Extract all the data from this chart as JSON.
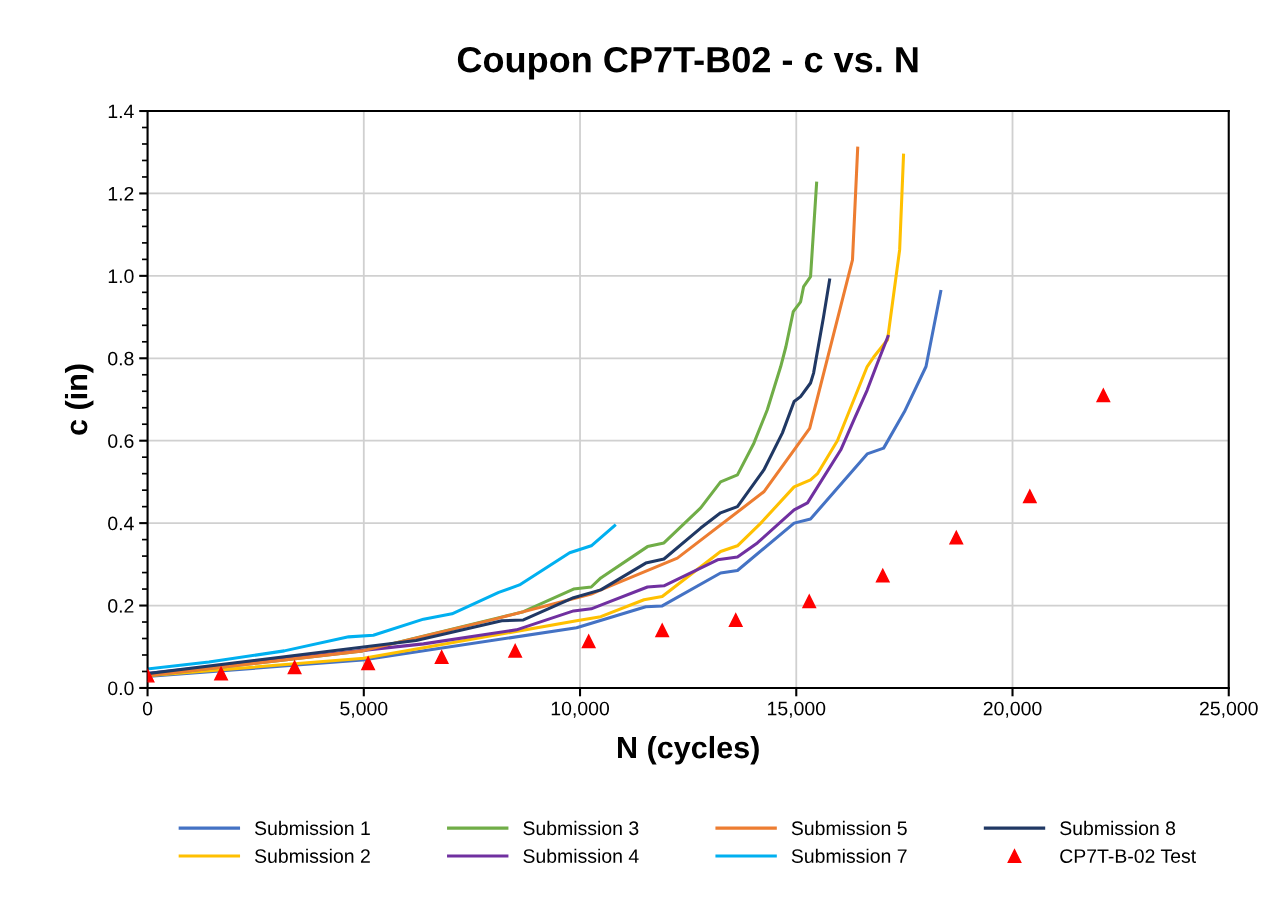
{
  "chart_data": {
    "type": "line",
    "title": "Coupon CP7T-B02 - c vs. N",
    "xlabel": "N (cycles)",
    "ylabel": "c (in)",
    "xlim": [
      0,
      25000
    ],
    "xticks": [
      {
        "value": 0,
        "label": "0"
      },
      {
        "value": 5000,
        "label": "5,000"
      },
      {
        "value": 10000,
        "label": "10,000"
      },
      {
        "value": 15000,
        "label": "15,000"
      },
      {
        "value": 20000,
        "label": "20,000"
      },
      {
        "value": 25000,
        "label": "25,000"
      }
    ],
    "ylim": [
      0,
      1.4
    ],
    "yticks": [
      {
        "value": 0,
        "label": "0.0"
      },
      {
        "value": 0.2,
        "label": "0.2"
      },
      {
        "value": 0.4,
        "label": "0.4"
      },
      {
        "value": 0.6,
        "label": "0.6"
      },
      {
        "value": 0.8,
        "label": "0.8"
      },
      {
        "value": 1.0,
        "label": "1.0"
      },
      {
        "value": 1.2,
        "label": "1.2"
      },
      {
        "value": 1.4,
        "label": "1.4"
      }
    ],
    "grid": true,
    "legend": "bottom",
    "marker": "none",
    "line_style": "solid",
    "series": [
      {
        "name": "Submission 1",
        "color": "#4472c4",
        "x": [
          0,
          4970,
          9920,
          11520,
          11900,
          13250,
          13640,
          14950,
          15330,
          16640,
          17020,
          17500,
          18000,
          18340
        ],
        "values": [
          0.028,
          0.068,
          0.146,
          0.197,
          0.199,
          0.279,
          0.285,
          0.4,
          0.41,
          0.568,
          0.582,
          0.67,
          0.78,
          0.962
        ]
      },
      {
        "name": "Submission 2",
        "color": "#ffc000",
        "x": [
          0,
          5000,
          9920,
          10480,
          11480,
          11900,
          13250,
          13640,
          14180,
          14950,
          15330,
          15490,
          15950,
          16640,
          16790,
          17110,
          17390,
          17480
        ],
        "values": [
          0.03,
          0.072,
          0.163,
          0.173,
          0.214,
          0.222,
          0.331,
          0.345,
          0.4,
          0.488,
          0.505,
          0.52,
          0.6,
          0.78,
          0.803,
          0.845,
          1.063,
          1.293
        ]
      },
      {
        "name": "Submission 3",
        "color": "#70ad47",
        "x": [
          0,
          4970,
          8690,
          9850,
          10260,
          10480,
          11560,
          11940,
          12790,
          13250,
          13640,
          14020,
          14330,
          14640,
          14760,
          14930,
          15100,
          15170,
          15330,
          15470
        ],
        "values": [
          0.03,
          0.09,
          0.185,
          0.24,
          0.245,
          0.267,
          0.343,
          0.352,
          0.437,
          0.5,
          0.517,
          0.594,
          0.675,
          0.78,
          0.828,
          0.913,
          0.937,
          0.974,
          0.998,
          1.225
        ]
      },
      {
        "name": "Submission 4",
        "color": "#7030a0",
        "x": [
          0,
          6380,
          8530,
          9850,
          10260,
          10480,
          11560,
          11940,
          13180,
          13640,
          14100,
          14950,
          15260,
          16030,
          16330,
          16640,
          16880,
          17120
        ],
        "values": [
          0.035,
          0.107,
          0.141,
          0.187,
          0.192,
          0.201,
          0.245,
          0.248,
          0.311,
          0.318,
          0.352,
          0.432,
          0.449,
          0.578,
          0.65,
          0.723,
          0.789,
          0.853
        ]
      },
      {
        "name": "Submission 5",
        "color": "#ed7d31",
        "x": [
          0,
          4970,
          8030,
          10260,
          10480,
          12250,
          14250,
          15310,
          16300,
          16420
        ],
        "values": [
          0.03,
          0.09,
          0.167,
          0.228,
          0.238,
          0.315,
          0.476,
          0.63,
          1.039,
          1.31
        ]
      },
      {
        "name": "Submission 7",
        "color": "#00b0f0",
        "x": [
          0,
          1420,
          3160,
          4650,
          5220,
          6380,
          7040,
          8120,
          8600,
          9760,
          10260,
          10800
        ],
        "values": [
          0.046,
          0.063,
          0.09,
          0.124,
          0.128,
          0.167,
          0.18,
          0.232,
          0.25,
          0.328,
          0.345,
          0.394
        ]
      },
      {
        "name": "Submission 8",
        "color": "#203864",
        "x": [
          0,
          6210,
          8190,
          8690,
          9850,
          10480,
          11520,
          11940,
          12790,
          13250,
          13640,
          14250,
          14680,
          14950,
          15100,
          15330,
          15400,
          15630,
          15770
        ],
        "values": [
          0.035,
          0.115,
          0.163,
          0.165,
          0.219,
          0.238,
          0.303,
          0.313,
          0.388,
          0.425,
          0.44,
          0.529,
          0.619,
          0.695,
          0.707,
          0.74,
          0.764,
          0.9,
          0.99
        ]
      },
      {
        "name": "CP7T-B-02 Test",
        "type": "scatter",
        "marker": "triangle",
        "color": "#ff0000",
        "x": [
          0,
          1700,
          3400,
          5100,
          6800,
          8500,
          10200,
          11900,
          13600,
          15300,
          17000,
          18700,
          20400,
          22100
        ],
        "values": [
          0.03,
          0.035,
          0.05,
          0.06,
          0.075,
          0.09,
          0.113,
          0.14,
          0.165,
          0.21,
          0.273,
          0.365,
          0.465,
          0.71
        ]
      }
    ]
  }
}
